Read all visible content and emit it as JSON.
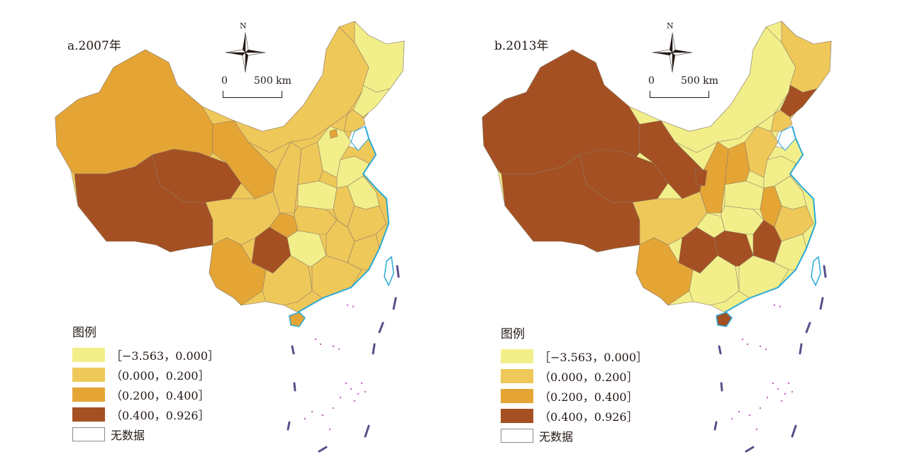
{
  "maps": [
    {
      "title": "a.2007年",
      "north_label": "N",
      "scale": {
        "zero": "0",
        "length": "500 km"
      }
    },
    {
      "title": "b.2013年",
      "north_label": "N",
      "scale": {
        "zero": "0",
        "length": "500 km"
      }
    }
  ],
  "legend": {
    "title": "图例",
    "classes": [
      {
        "label": "［−3.563，0.000］",
        "color": "#f2ef8a"
      },
      {
        "label": "（0.000，0.200］",
        "color": "#efc85a"
      },
      {
        "label": "（0.200，0.400］",
        "color": "#e5a535"
      },
      {
        "label": "（0.400，0.926］",
        "color": "#a55022"
      },
      {
        "label": "无数据",
        "color": "#ffffff"
      }
    ]
  },
  "colors": {
    "border": "#8c7b6a",
    "coast": "#2aa8d8",
    "island_dots": "#c868c8",
    "dash_line": "#5a4f8a"
  }
}
